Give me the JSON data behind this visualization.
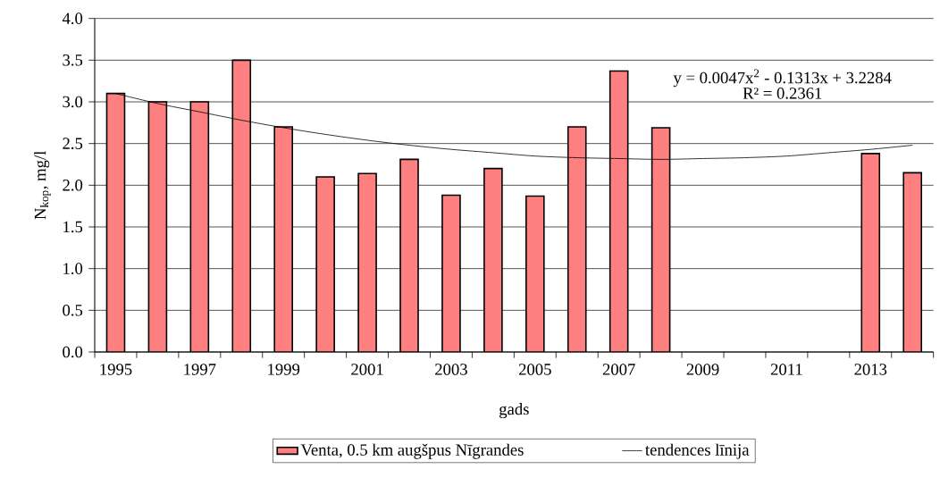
{
  "chart_data": {
    "type": "bar",
    "xlabel": "gads",
    "ylabel": "N$_{kop}$, mg/l",
    "categories": [
      "1995",
      null,
      "1997",
      null,
      "1999",
      null,
      "2001",
      null,
      "2003",
      null,
      "2005",
      null,
      "2007",
      null,
      "2009",
      null,
      "2011",
      null,
      "2013",
      null
    ],
    "series": [
      {
        "name": "Venta, 0.5 km augšpus Nīgrandes",
        "color": "#ff8080",
        "values": [
          3.1,
          3.0,
          3.0,
          3.5,
          2.7,
          2.1,
          2.14,
          2.31,
          1.88,
          2.2,
          1.87,
          2.7,
          3.37,
          2.69,
          null,
          null,
          null,
          null,
          2.38,
          2.15
        ]
      },
      {
        "type": "line",
        "name": "tendences līnija",
        "color": "#000000",
        "values": [
          3.1,
          2.98,
          2.88,
          2.78,
          2.69,
          2.61,
          2.54,
          2.48,
          2.43,
          2.39,
          2.35,
          2.33,
          2.32,
          2.31,
          2.32,
          2.33,
          2.35,
          2.39,
          2.43,
          2.48
        ]
      }
    ],
    "ylim": [
      0,
      4
    ],
    "yticks": [
      {
        "value": 0,
        "label": "0.0"
      },
      {
        "value": 0.5,
        "label": "0.5"
      },
      {
        "value": 1,
        "label": "1.0"
      },
      {
        "value": 1.5,
        "label": "1.5"
      },
      {
        "value": 2,
        "label": "2.0"
      },
      {
        "value": 2.5,
        "label": "2.5"
      },
      {
        "value": 3,
        "label": "3.0"
      },
      {
        "value": 3.5,
        "label": "3.5"
      },
      {
        "value": 4,
        "label": "4.0"
      }
    ],
    "grid": "y",
    "legend": "bottom",
    "annotations": [
      "y = 0.0047x$^{2}$ - 0.1313x + 3.2284",
      "R² = 0.2361"
    ]
  }
}
